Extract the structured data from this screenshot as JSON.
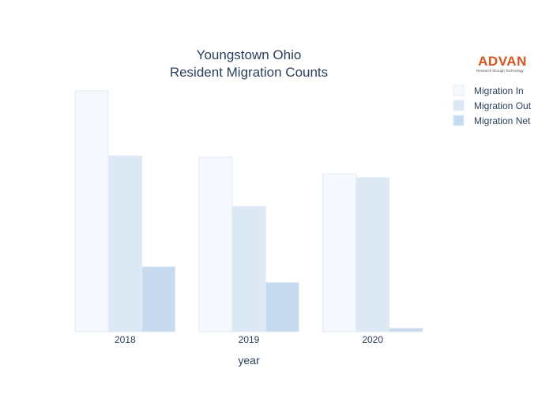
{
  "chart_data": {
    "type": "bar",
    "title": "Youngstown Ohio",
    "subtitle": "Resident Migration Counts",
    "xlabel": "year",
    "ylabel": "",
    "categories": [
      "2018",
      "2019",
      "2020"
    ],
    "series": [
      {
        "name": "Migration In",
        "values": [
          1000,
          725,
          655
        ],
        "color": "#f5f9fd"
      },
      {
        "name": "Migration Out",
        "values": [
          730,
          520,
          640
        ],
        "color": "#dde8f5"
      },
      {
        "name": "Migration Net",
        "values": [
          270,
          205,
          15
        ],
        "color": "#c6dbef"
      }
    ],
    "ylim": [
      0,
      1000
    ],
    "grid": false,
    "legend": "top-right"
  },
  "logo": {
    "name": "ADVAN",
    "tagline": "Research through Technology"
  }
}
